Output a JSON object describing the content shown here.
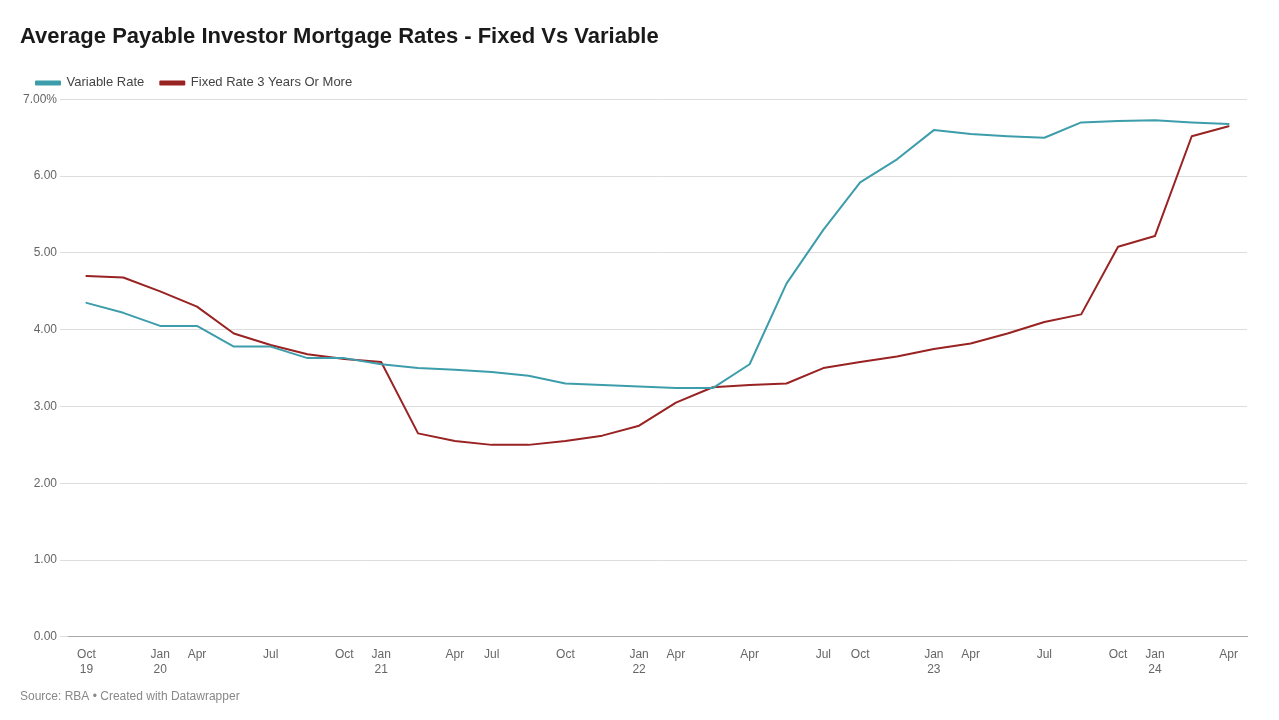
{
  "chart_data": {
    "type": "line",
    "title": "Average Payable Investor Mortgage Rates - Fixed Vs Variable",
    "annotations": [
      "Source: RBA • Created with Datawrapper"
    ],
    "categories": [
      "Oct\n19",
      null,
      "Jan\n20",
      "Apr",
      null,
      "Jul",
      null,
      "Oct",
      "Jan\n21",
      null,
      "Apr",
      "Jul",
      null,
      "Oct",
      null,
      "Jan\n22",
      "Apr",
      null,
      "Apr",
      null,
      "Jul",
      "Oct",
      null,
      "Jan\n23",
      "Apr",
      null,
      "Jul",
      null,
      "Oct",
      "Jan\n24",
      null,
      "Apr"
    ],
    "series": [
      {
        "name": "Variable Rate",
        "color": "#3d9daa",
        "values": [
          4.35,
          4.22,
          4.05,
          4.05,
          3.78,
          3.78,
          3.63,
          3.63,
          3.55,
          3.5,
          3.48,
          3.45,
          3.4,
          3.3,
          3.28,
          3.26,
          3.24,
          3.24,
          3.55,
          4.6,
          5.3,
          5.92,
          6.22,
          6.6,
          6.55,
          6.52,
          6.5,
          6.7,
          6.72,
          6.73,
          6.7,
          6.68
        ]
      },
      {
        "name": "Fixed Rate 3 Years Or More",
        "color": "#992222",
        "values": [
          4.7,
          4.68,
          4.5,
          4.3,
          3.95,
          3.8,
          3.68,
          3.62,
          3.58,
          2.65,
          2.55,
          2.5,
          2.5,
          2.55,
          2.62,
          2.75,
          3.05,
          3.25,
          3.28,
          3.3,
          3.5,
          3.58,
          3.65,
          3.75,
          3.82,
          3.95,
          4.1,
          4.2,
          5.08,
          5.22,
          6.52,
          6.65
        ]
      }
    ],
    "ylim": [
      0.0,
      7.0
    ],
    "yticks": [
      {
        "value": 0,
        "label": "0.00"
      },
      {
        "value": 1,
        "label": "1.00"
      },
      {
        "value": 2,
        "label": "2.00"
      },
      {
        "value": 3,
        "label": "3.00"
      },
      {
        "value": 4,
        "label": "4.00"
      },
      {
        "value": 5,
        "label": "5.00"
      },
      {
        "value": 6,
        "label": "6.00"
      },
      {
        "value": 7,
        "label": "7.00%"
      }
    ],
    "grid": true,
    "legend": "top-left"
  }
}
